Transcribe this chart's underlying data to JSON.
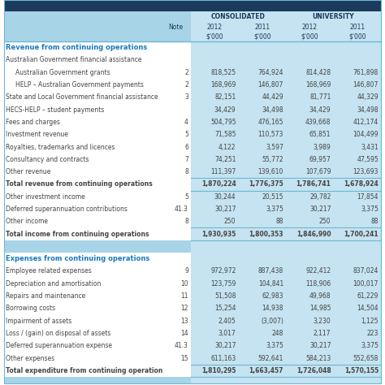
{
  "dark_header_color": "#1b3a5c",
  "light_blue_bg": "#a8d4e8",
  "stripe_blue": "#c5e3f0",
  "section_color": "#1a7abf",
  "text_color": "#444444",
  "border_color": "#6bb8d4",
  "white": "#ffffff",
  "rows": [
    {
      "label": "Revenue from continuing operations",
      "note": "",
      "v": [
        "",
        "",
        "",
        ""
      ],
      "type": "section"
    },
    {
      "label": "Australian Government financial assistance",
      "note": "",
      "v": [
        "",
        "",
        "",
        ""
      ],
      "type": "subsection"
    },
    {
      "label": "Australian Government grants",
      "note": "2",
      "v": [
        "818,525",
        "764,924",
        "814,428",
        "761,898"
      ],
      "type": "indent"
    },
    {
      "label": "HELP – Australian Government payments",
      "note": "2",
      "v": [
        "168,969",
        "146,807",
        "168,969",
        "146,807"
      ],
      "type": "indent"
    },
    {
      "label": "State and Local Government financial assistance",
      "note": "3",
      "v": [
        "82,151",
        "44,429",
        "81,771",
        "44,329"
      ],
      "type": "data"
    },
    {
      "label": "HECS-HELP – student payments",
      "note": "",
      "v": [
        "34,429",
        "34,498",
        "34,429",
        "34,498"
      ],
      "type": "data"
    },
    {
      "label": "Fees and charges",
      "note": "4",
      "v": [
        "504,795",
        "476,165",
        "439,668",
        "412,174"
      ],
      "type": "data"
    },
    {
      "label": "Investment revenue",
      "note": "5",
      "v": [
        "71,585",
        "110,573",
        "65,851",
        "104,499"
      ],
      "type": "data"
    },
    {
      "label": "Royalties, trademarks and licences",
      "note": "6",
      "v": [
        "4,122",
        "3,597",
        "3,989",
        "3,431"
      ],
      "type": "data"
    },
    {
      "label": "Consultancy and contracts",
      "note": "7",
      "v": [
        "74,251",
        "55,772",
        "69,957",
        "47,595"
      ],
      "type": "data"
    },
    {
      "label": "Other revenue",
      "note": "8",
      "v": [
        "111,397",
        "139,610",
        "107,679",
        "123,693"
      ],
      "type": "data"
    },
    {
      "label": "Total revenue from continuing operations",
      "note": "",
      "v": [
        "1,870,224",
        "1,776,375",
        "1,786,741",
        "1,678,924"
      ],
      "type": "total"
    },
    {
      "label": "Other investment income",
      "note": "5",
      "v": [
        "30,244",
        "20,515",
        "29,782",
        "17,854"
      ],
      "type": "data"
    },
    {
      "label": "Deferred superannuation contributions",
      "note": "41.3",
      "v": [
        "30,217",
        "3,375",
        "30,217",
        "3,375"
      ],
      "type": "data"
    },
    {
      "label": "Other income",
      "note": "8",
      "v": [
        "250",
        "88",
        "250",
        "88"
      ],
      "type": "data"
    },
    {
      "label": "Total income from continuing operations",
      "note": "",
      "v": [
        "1,930,935",
        "1,800,353",
        "1,846,990",
        "1,700,241"
      ],
      "type": "total"
    },
    {
      "label": "",
      "note": "",
      "v": [
        "",
        "",
        "",
        ""
      ],
      "type": "spacer"
    },
    {
      "label": "Expenses from continuing operations",
      "note": "",
      "v": [
        "",
        "",
        "",
        ""
      ],
      "type": "section"
    },
    {
      "label": "Employee related expenses",
      "note": "9",
      "v": [
        "972,972",
        "887,438",
        "922,412",
        "837,024"
      ],
      "type": "data"
    },
    {
      "label": "Depreciation and amortisation",
      "note": "10",
      "v": [
        "123,759",
        "104,841",
        "118,906",
        "100,017"
      ],
      "type": "data"
    },
    {
      "label": "Repairs and maintenance",
      "note": "11",
      "v": [
        "51,508",
        "62,983",
        "49,968",
        "61,229"
      ],
      "type": "data"
    },
    {
      "label": "Borrowing costs",
      "note": "12",
      "v": [
        "15,254",
        "14,938",
        "14,985",
        "14,504"
      ],
      "type": "data"
    },
    {
      "label": "Impairment of assets",
      "note": "13",
      "v": [
        "2,405",
        "(3,007)",
        "3,230",
        "1,125"
      ],
      "type": "data"
    },
    {
      "label": "Loss / (gain) on disposal of assets",
      "note": "14",
      "v": [
        "3,017",
        "248",
        "2,117",
        "223"
      ],
      "type": "data"
    },
    {
      "label": "Deferred superannuation expense",
      "note": "41.3",
      "v": [
        "30,217",
        "3,375",
        "30,217",
        "3,375"
      ],
      "type": "data"
    },
    {
      "label": "Other expenses",
      "note": "15",
      "v": [
        "611,163",
        "592,641",
        "584,213",
        "552,658"
      ],
      "type": "data"
    },
    {
      "label": "Total expenditure from continuing operation",
      "note": "",
      "v": [
        "1,810,295",
        "1,663,457",
        "1,726,048",
        "1,570,155"
      ],
      "type": "total"
    }
  ]
}
